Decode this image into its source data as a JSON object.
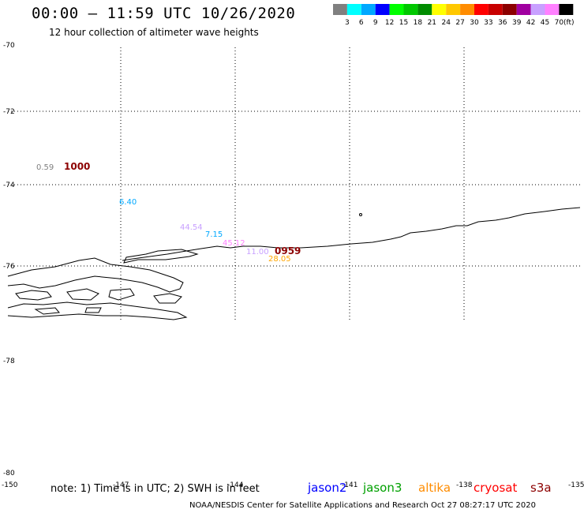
{
  "header": {
    "title": "00:00 – 11:59 UTC 10/26/2020",
    "subtitle": "12 hour collection of altimeter wave heights"
  },
  "legend": {
    "unit": "(ft)",
    "ticks": [
      "3",
      "6",
      "9",
      "12",
      "15",
      "18",
      "21",
      "24",
      "27",
      "30",
      "33",
      "36",
      "39",
      "42",
      "45",
      "70"
    ],
    "colors": [
      "#808080",
      "#00ffff",
      "#00a8ff",
      "#0000ff",
      "#00ff00",
      "#00c800",
      "#008c00",
      "#ffff00",
      "#ffc800",
      "#ff8c00",
      "#ff0000",
      "#c80000",
      "#8c0000",
      "#a000a0",
      "#c8a0ff",
      "#ff80ff",
      "#000000"
    ]
  },
  "axes": {
    "lat_labels": [
      "-70",
      "-72",
      "-74",
      "-76",
      "-78",
      "-78",
      "-80"
    ],
    "lon_labels": [
      "-150",
      "-147",
      "-144",
      "-141",
      "-138",
      "-135"
    ]
  },
  "observations": [
    {
      "text": "0.59",
      "color": "#808080"
    },
    {
      "text": "1000",
      "color": "#8c0000"
    },
    {
      "text": "6.40",
      "color": "#00a8ff"
    },
    {
      "text": "44.54",
      "color": "#c8a0ff"
    },
    {
      "text": "7.15",
      "color": "#00a8ff"
    },
    {
      "text": "45.12",
      "color": "#ff80ff"
    },
    {
      "text": "11.00",
      "color": "#c8a0ff"
    },
    {
      "text": "0959",
      "color": "#8c0000"
    },
    {
      "text": "28.05",
      "color": "#ffa500"
    }
  ],
  "footer": {
    "note": "note: 1) Time is in UTC; 2) SWH is in feet",
    "credit": "NOAA/NESDIS Center for Satellite Applications and Research    Oct 27 08:27:17 UTC 2020",
    "satellites": [
      {
        "name": "jason2",
        "color": "#0000ff"
      },
      {
        "name": "jason3",
        "color": "#00a000"
      },
      {
        "name": "altika",
        "color": "#ff8c00"
      },
      {
        "name": "cryosat",
        "color": "#ff0000"
      },
      {
        "name": "s3a",
        "color": "#8c0000"
      }
    ]
  }
}
